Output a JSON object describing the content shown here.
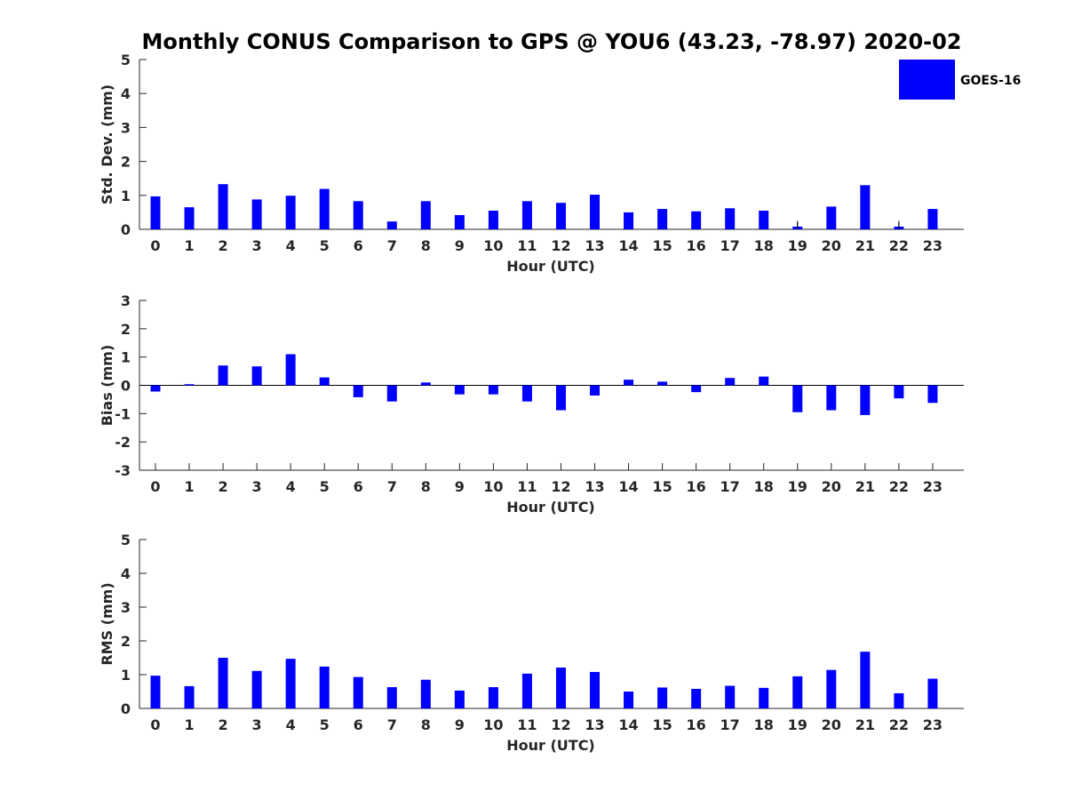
{
  "chart_data": {
    "type": "bar",
    "title": "Monthly CONUS Comparison to GPS @ YOU6 (43.23, -78.97) 2020-02",
    "legend": {
      "label": "GOES-16",
      "position": "top-right",
      "color": "#0000ff"
    },
    "bar_color": "#0000ff",
    "categories": [
      "0",
      "1",
      "2",
      "3",
      "4",
      "5",
      "6",
      "7",
      "8",
      "9",
      "10",
      "11",
      "12",
      "13",
      "14",
      "15",
      "16",
      "17",
      "18",
      "19",
      "20",
      "21",
      "22",
      "23"
    ],
    "panels": [
      {
        "name": "std-dev",
        "ylabel": "Std. Dev. (mm)",
        "xlabel": "Hour (UTC)",
        "ylim": [
          0,
          5
        ],
        "yticks": [
          "0",
          "1",
          "2",
          "3",
          "4",
          "5"
        ],
        "zero_line": false,
        "values": [
          0.97,
          0.65,
          1.33,
          0.88,
          0.99,
          1.19,
          0.83,
          0.23,
          0.83,
          0.42,
          0.55,
          0.83,
          0.78,
          1.02,
          0.5,
          0.6,
          0.53,
          0.62,
          0.55,
          0.08,
          0.67,
          1.3,
          0.08,
          0.6
        ],
        "error": [
          0,
          0,
          0,
          0,
          0,
          0,
          0,
          0,
          0,
          0,
          0,
          0,
          0,
          0,
          0,
          0,
          0,
          0,
          0,
          0.17,
          0,
          0,
          0.17,
          0
        ]
      },
      {
        "name": "bias",
        "ylabel": "Bias (mm)",
        "xlabel": "Hour (UTC)",
        "ylim": [
          -3,
          3
        ],
        "yticks": [
          "-3",
          "-2",
          "-1",
          "0",
          "1",
          "2",
          "3"
        ],
        "zero_line": true,
        "values": [
          -0.22,
          0.04,
          0.7,
          0.67,
          1.1,
          0.28,
          -0.42,
          -0.57,
          0.1,
          -0.32,
          -0.32,
          -0.57,
          -0.88,
          -0.36,
          0.2,
          0.13,
          -0.24,
          0.26,
          0.31,
          -0.95,
          -0.88,
          -1.05,
          -0.46,
          -0.62
        ],
        "error": []
      },
      {
        "name": "rms",
        "ylabel": "RMS (mm)",
        "xlabel": "Hour (UTC)",
        "ylim": [
          0,
          5
        ],
        "yticks": [
          "0",
          "1",
          "2",
          "3",
          "4",
          "5"
        ],
        "zero_line": false,
        "values": [
          0.97,
          0.66,
          1.5,
          1.11,
          1.47,
          1.24,
          0.93,
          0.63,
          0.85,
          0.53,
          0.63,
          1.03,
          1.21,
          1.08,
          0.5,
          0.62,
          0.58,
          0.67,
          0.61,
          0.95,
          1.14,
          1.68,
          0.45,
          0.88
        ],
        "error": []
      }
    ]
  }
}
